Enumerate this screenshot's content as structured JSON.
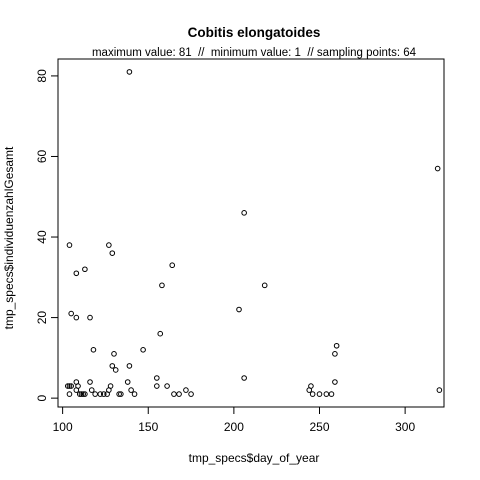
{
  "chart_data": {
    "type": "scatter",
    "title": "Cobitis elongatoides",
    "subtitle": "maximum value: 81  //  minimum value: 1  // sampling points: 64",
    "xlabel": "tmp_specs$day_of_year",
    "ylabel": "tmp_specs$individuenzahlGesamt",
    "xlim": [
      97.3,
      322.7
    ],
    "ylim": [
      -2.2,
      84.2
    ],
    "x_ticks": [
      100,
      150,
      200,
      250,
      300
    ],
    "y_ticks": [
      0,
      20,
      40,
      60,
      80
    ],
    "grid": false,
    "marker": "open-circle",
    "points": [
      {
        "x": 104,
        "y": 38
      },
      {
        "x": 105,
        "y": 21
      },
      {
        "x": 108,
        "y": 31
      },
      {
        "x": 108,
        "y": 20
      },
      {
        "x": 113,
        "y": 32
      },
      {
        "x": 116,
        "y": 20
      },
      {
        "x": 118,
        "y": 12
      },
      {
        "x": 127,
        "y": 38
      },
      {
        "x": 129,
        "y": 36
      },
      {
        "x": 130,
        "y": 11
      },
      {
        "x": 129,
        "y": 8
      },
      {
        "x": 131,
        "y": 7
      },
      {
        "x": 138,
        "y": 4
      },
      {
        "x": 139,
        "y": 8
      },
      {
        "x": 139,
        "y": 81
      },
      {
        "x": 147,
        "y": 12
      },
      {
        "x": 155,
        "y": 5
      },
      {
        "x": 155,
        "y": 3
      },
      {
        "x": 157,
        "y": 16
      },
      {
        "x": 158,
        "y": 28
      },
      {
        "x": 164,
        "y": 33
      },
      {
        "x": 161,
        "y": 3
      },
      {
        "x": 168,
        "y": 1
      },
      {
        "x": 172,
        "y": 2
      },
      {
        "x": 175,
        "y": 1
      },
      {
        "x": 203,
        "y": 22
      },
      {
        "x": 206,
        "y": 46
      },
      {
        "x": 206,
        "y": 5
      },
      {
        "x": 218,
        "y": 28
      },
      {
        "x": 244,
        "y": 2
      },
      {
        "x": 245,
        "y": 3
      },
      {
        "x": 246,
        "y": 1
      },
      {
        "x": 250,
        "y": 1
      },
      {
        "x": 254,
        "y": 1
      },
      {
        "x": 257,
        "y": 1
      },
      {
        "x": 259,
        "y": 4
      },
      {
        "x": 259,
        "y": 11
      },
      {
        "x": 260,
        "y": 13
      },
      {
        "x": 319,
        "y": 57
      },
      {
        "x": 320,
        "y": 2
      },
      {
        "x": 103,
        "y": 3
      },
      {
        "x": 104,
        "y": 3
      },
      {
        "x": 105,
        "y": 3
      },
      {
        "x": 104,
        "y": 1
      },
      {
        "x": 108,
        "y": 2
      },
      {
        "x": 108,
        "y": 4
      },
      {
        "x": 109,
        "y": 3
      },
      {
        "x": 110,
        "y": 1
      },
      {
        "x": 111,
        "y": 1
      },
      {
        "x": 112,
        "y": 1
      },
      {
        "x": 113,
        "y": 1
      },
      {
        "x": 116,
        "y": 4
      },
      {
        "x": 117,
        "y": 2
      },
      {
        "x": 119,
        "y": 1
      },
      {
        "x": 122,
        "y": 1
      },
      {
        "x": 124,
        "y": 1
      },
      {
        "x": 126,
        "y": 1
      },
      {
        "x": 127,
        "y": 2
      },
      {
        "x": 128,
        "y": 3
      },
      {
        "x": 133,
        "y": 1
      },
      {
        "x": 134,
        "y": 1
      },
      {
        "x": 140,
        "y": 2
      },
      {
        "x": 142,
        "y": 1
      },
      {
        "x": 165,
        "y": 1
      }
    ]
  }
}
